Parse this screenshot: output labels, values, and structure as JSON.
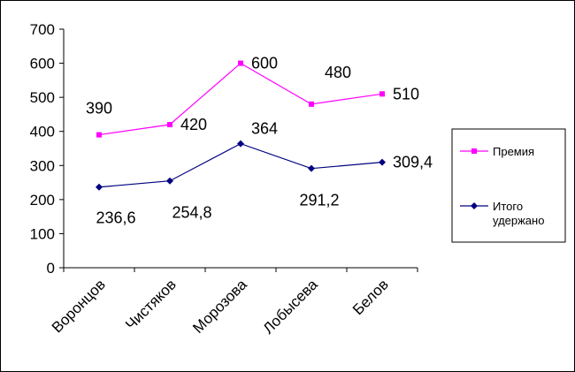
{
  "chart_data": {
    "type": "line",
    "categories": [
      "Воронцов",
      "Чистяков",
      "Морозова",
      "Лобысева",
      "Белов"
    ],
    "series": [
      {
        "name": "Премия",
        "values": [
          390,
          420,
          600,
          480,
          510
        ],
        "labels": [
          "390",
          "420",
          "600",
          "480",
          "510"
        ],
        "color": "#FF00FF",
        "marker": "square"
      },
      {
        "name": "Итого удержано",
        "name_lines": [
          "Итого",
          "удержано"
        ],
        "values": [
          236.6,
          254.8,
          364,
          291.2,
          309.4
        ],
        "labels": [
          "236,6",
          "254,8",
          "364",
          "291,2",
          "309,4"
        ],
        "color": "#000080",
        "marker": "diamond"
      }
    ],
    "ylim": [
      0,
      700
    ],
    "yticks": [
      0,
      100,
      200,
      300,
      400,
      500,
      600,
      700
    ],
    "ytick_labels": [
      "0",
      "100",
      "200",
      "300",
      "400",
      "500",
      "600",
      "700"
    ],
    "grid": false,
    "legend_position": "right",
    "title": "",
    "xlabel": "",
    "ylabel": ""
  }
}
